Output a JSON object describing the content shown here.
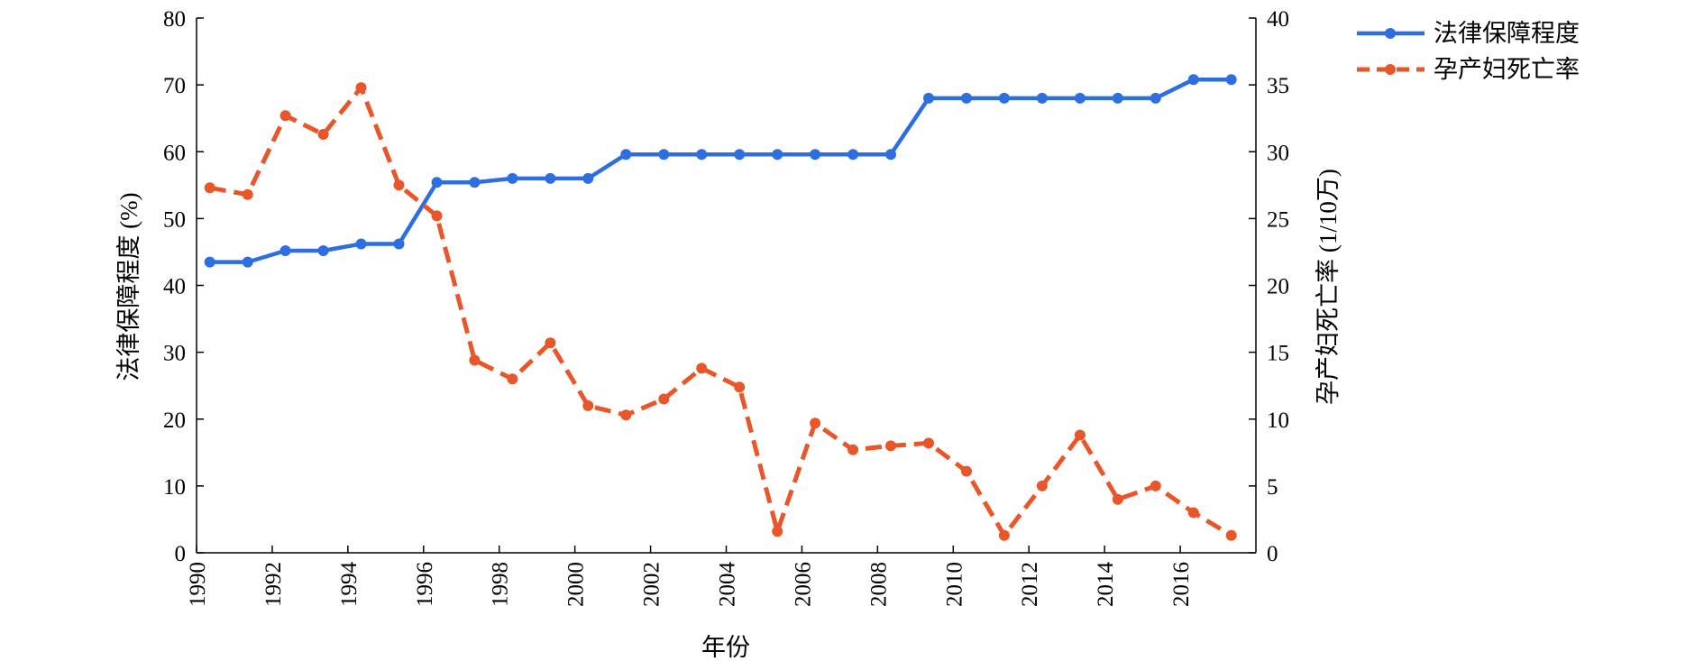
{
  "chart_data": {
    "type": "line",
    "xlabel": "年份",
    "ylabel_left": "法律保障程度 (%)",
    "ylabel_right": "孕产妇死亡率 (1/10万)",
    "xlim": [
      1990,
      2018
    ],
    "ylim_left": [
      0,
      80
    ],
    "ylim_right": [
      0,
      40
    ],
    "x_ticks": [
      1990,
      1992,
      1994,
      1996,
      1998,
      2000,
      2002,
      2004,
      2006,
      2008,
      2010,
      2012,
      2014,
      2016
    ],
    "y_ticks_left": [
      0,
      10,
      20,
      30,
      40,
      50,
      60,
      70,
      80
    ],
    "y_ticks_right": [
      0,
      5,
      10,
      15,
      20,
      25,
      30,
      35,
      40
    ],
    "grid": false,
    "legend_position": "top-right",
    "x": [
      1990,
      1991,
      1992,
      1993,
      1994,
      1995,
      1996,
      1997,
      1998,
      1999,
      2000,
      2001,
      2002,
      2003,
      2004,
      2005,
      2006,
      2007,
      2008,
      2009,
      2010,
      2011,
      2012,
      2013,
      2014,
      2015,
      2016,
      2017
    ],
    "series": [
      {
        "name": "法律保障程度",
        "axis": "left",
        "style": "solid",
        "color": "#2E6FE0",
        "values": [
          43.5,
          43.5,
          45.2,
          45.2,
          46.2,
          46.2,
          55.4,
          55.4,
          56,
          56,
          56,
          59.6,
          59.6,
          59.6,
          59.6,
          59.6,
          59.6,
          59.6,
          59.6,
          68,
          68,
          68,
          68,
          68,
          68,
          68,
          70.8,
          70.8
        ]
      },
      {
        "name": "孕产妇死亡率",
        "axis": "right",
        "style": "dashed",
        "color": "#E8562A",
        "values": [
          27.3,
          26.8,
          32.7,
          31.3,
          34.8,
          27.5,
          25.2,
          14.4,
          13,
          15.7,
          11,
          10.3,
          11.5,
          13.8,
          12.4,
          1.6,
          9.7,
          7.7,
          8,
          8.2,
          6.1,
          1.3,
          5,
          8.8,
          4,
          5,
          3,
          1.3
        ]
      }
    ]
  }
}
